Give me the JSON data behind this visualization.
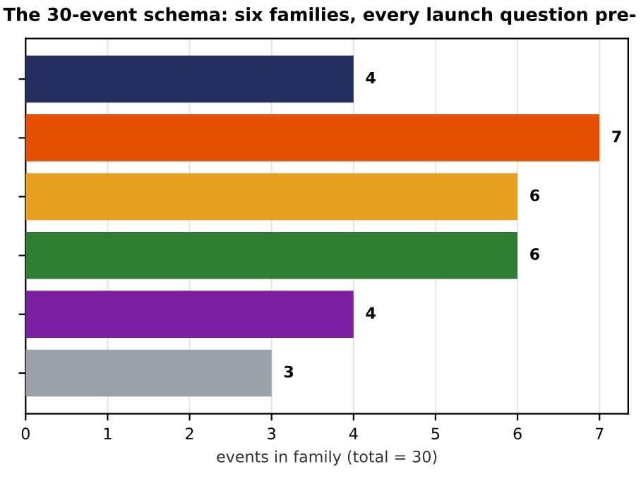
{
  "chart_data": {
    "type": "bar",
    "orientation": "horizontal",
    "title": "The 30-event schema: six families, every launch question pre-",
    "xlabel": "events in family (total = 30)",
    "categories": [
      null,
      null,
      null,
      null,
      null,
      null
    ],
    "values": [
      4,
      7,
      6,
      6,
      4,
      3
    ],
    "colors": [
      "#232f5e",
      "#e65100",
      "#e8a020",
      "#2e7d32",
      "#7b1fa2",
      "#9aa0a8"
    ],
    "xlim": [
      0,
      7.35
    ],
    "xticks": [
      0,
      1,
      2,
      3,
      4,
      5,
      6,
      7
    ],
    "grid": "x",
    "data_labels": true
  }
}
